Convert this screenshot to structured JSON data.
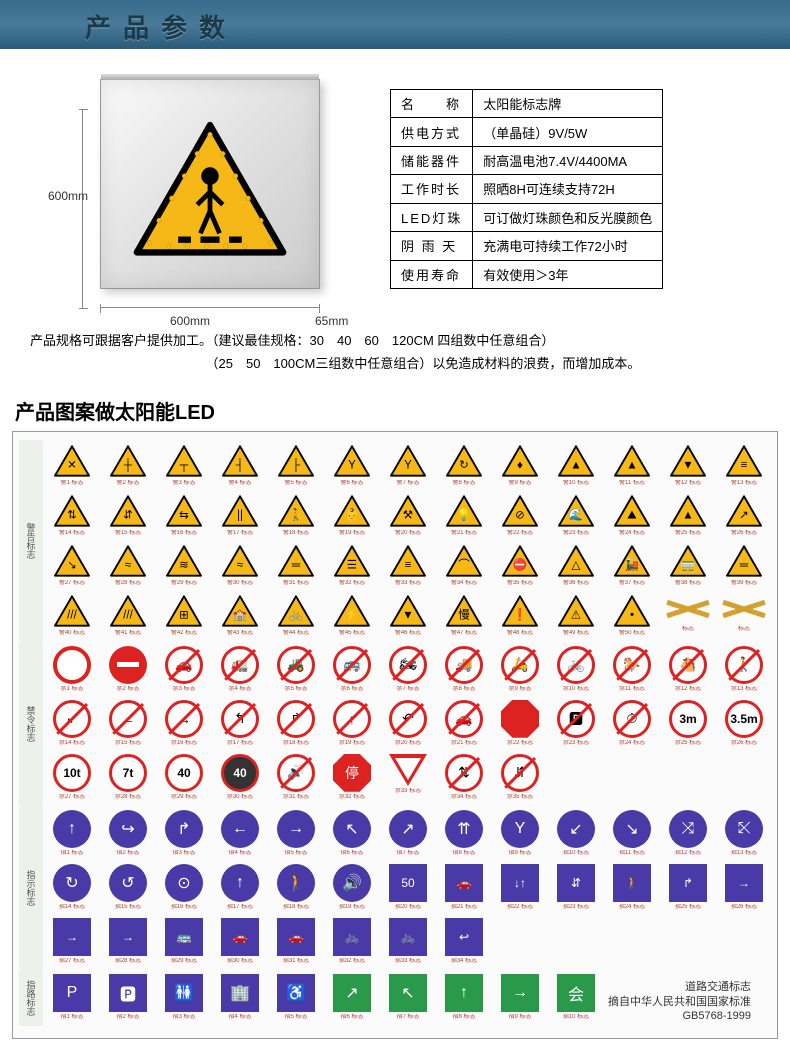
{
  "header": {
    "title": "产品参数"
  },
  "figure": {
    "dim_height": "600mm",
    "dim_width": "600mm",
    "dim_depth": "65mm",
    "triangle_bg": "#f5b816",
    "triangle_border": "#000000"
  },
  "spec_rows": [
    {
      "k": "名　　称",
      "v": "太阳能标志牌"
    },
    {
      "k": "供电方式",
      "v": "（单晶硅）9V/5W"
    },
    {
      "k": "储能器件",
      "v": "耐高温电池7.4V/4400MA"
    },
    {
      "k": "工作时长",
      "v": "照晒8H可连续支持72H"
    },
    {
      "k": "LED灯珠",
      "v": "可订做灯珠颜色和反光膜颜色"
    },
    {
      "k": "阴 雨 天",
      "v": "充满电可持续工作72小时"
    },
    {
      "k": "使用寿命",
      "v": "有效使用＞3年"
    }
  ],
  "note": {
    "line1": "产品规格可跟据客户提供加工。（建议最佳规格：30　40　60　120CM 四组数中任意组合）",
    "line2": "　　　　　　　　　　　　　　（25　50　100CM三组数中任意组合）以免造成材料的浪费，而增加成本。"
  },
  "section2_title": "产品图案做太阳能LED",
  "chart": {
    "row_labels": [
      "警告标志",
      "禁令标志",
      "指示标志",
      "指路标志"
    ],
    "warning_icons": [
      "✕",
      "┼",
      "┬",
      "┤",
      "├",
      "Y",
      "Y",
      "↻",
      "♦",
      "▲",
      "▲",
      "▼",
      "≡",
      "⇅",
      "⇵",
      "⇆",
      "||",
      "🚶",
      "👶",
      "⚒",
      "💡",
      "⊘",
      "🌊",
      "⛰",
      "▲",
      "↗",
      "↘",
      "≈",
      "≋",
      "≈",
      "═",
      "☰",
      "≡",
      "⌒",
      "⛔",
      "△",
      "🚂",
      "🚃",
      "═",
      "///",
      "///",
      "⊞",
      "🏫",
      "🚲",
      "⚡",
      "▼",
      "慢",
      "❗",
      "⚠",
      "•"
    ],
    "prohib_icons": [
      {
        "t": "ring"
      },
      {
        "t": "solid"
      },
      {
        "t": "slash",
        "g": "🚗"
      },
      {
        "t": "slash",
        "g": "🚛"
      },
      {
        "t": "slash",
        "g": "🚜"
      },
      {
        "t": "slash",
        "g": "🚌"
      },
      {
        "t": "slash",
        "g": "🏍"
      },
      {
        "t": "slash",
        "g": "🚚"
      },
      {
        "t": "slash",
        "g": "🛵"
      },
      {
        "t": "slash",
        "g": "🚲"
      },
      {
        "t": "slash",
        "g": "🐎"
      },
      {
        "t": "slash",
        "g": "🐴"
      },
      {
        "t": "slash",
        "g": "🚶"
      },
      {
        "t": "slash",
        "g": "↙"
      },
      {
        "t": "slash",
        "g": "←"
      },
      {
        "t": "slash",
        "g": "→"
      },
      {
        "t": "slash",
        "g": "↰"
      },
      {
        "t": "slash",
        "g": "↱"
      },
      {
        "t": "slash",
        "g": "↑"
      },
      {
        "t": "slash",
        "g": "↶"
      },
      {
        "t": "slash",
        "g": "🚗"
      },
      {
        "t": "oct"
      },
      {
        "t": "slash",
        "g": "🅿"
      },
      {
        "t": "slash",
        "g": "⏱"
      },
      {
        "t": "limit",
        "g": "3m"
      },
      {
        "t": "limit",
        "g": "3.5m"
      },
      {
        "t": "limit",
        "g": "10t"
      },
      {
        "t": "limit",
        "g": "7t"
      },
      {
        "t": "limit",
        "g": "40"
      },
      {
        "t": "limitg",
        "g": "40"
      },
      {
        "t": "slash",
        "g": "🔊"
      },
      {
        "t": "stop"
      },
      {
        "t": "yield"
      },
      {
        "t": "slash",
        "g": "⇅"
      },
      {
        "t": "slash",
        "g": "⇵"
      }
    ],
    "mand_icons": [
      "↑",
      "↪",
      "↱",
      "←",
      "→",
      "↖",
      "↗",
      "⇈",
      " Y",
      "↙",
      "↘",
      "⤨",
      "⤪",
      "↻",
      "↺",
      "⊙",
      "↑",
      "🚶",
      "🔊",
      "50",
      "🚗",
      "↓↑",
      "⇵",
      "🚶",
      "↱",
      "→",
      "→",
      "→",
      "🚌",
      "🚗",
      "🚗",
      "🚲",
      "🚲",
      "↩"
    ],
    "guide_icons": [
      "P",
      "🅿",
      "🚻",
      "🏢",
      "♿",
      "↗",
      "↖",
      "↑",
      "→",
      "会"
    ],
    "footer1": "道路交通标志",
    "footer2": "摘自中华人民共和国国家标准GB5768-1999"
  },
  "colors": {
    "header_bg": "#3a6a8a",
    "warning_yellow": "#f5b816",
    "prohib_red": "#d22222",
    "mandatory_blue": "#4a3aa8",
    "guide_green": "#2a9a4a"
  }
}
